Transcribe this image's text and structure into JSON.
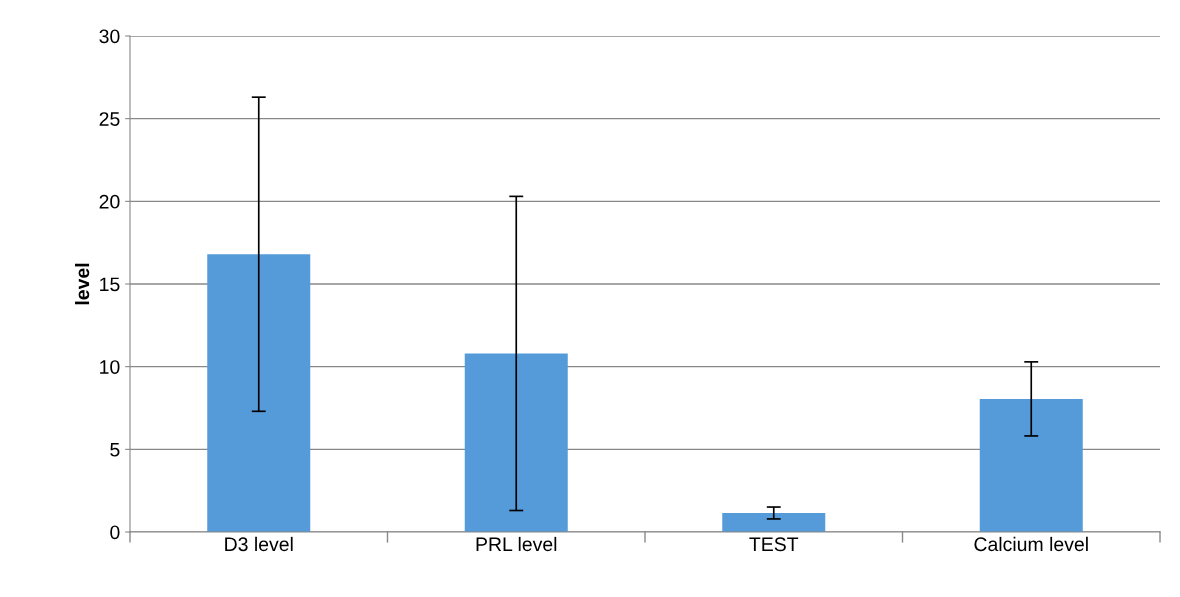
{
  "chart_data": {
    "type": "bar",
    "ylabel": "level",
    "categories": [
      "D3 level",
      "PRL level",
      "TEST",
      "Calcium level"
    ],
    "values": [
      16.8,
      10.8,
      1.15,
      8.05
    ],
    "errors": [
      9.5,
      9.5,
      0.36,
      2.24
    ],
    "color": "#559bd9",
    "ylim": [
      0,
      30
    ],
    "yticks": [
      0,
      5,
      10,
      15,
      20,
      25,
      30
    ],
    "grid": "y"
  }
}
